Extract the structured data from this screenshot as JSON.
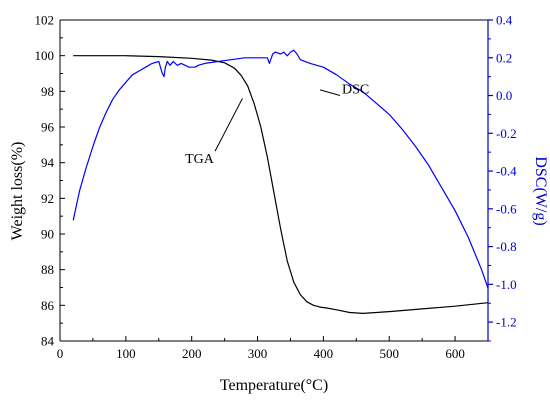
{
  "chart_data": {
    "type": "line",
    "title": "",
    "xlabel": "Temperature(°C)",
    "ylabel_left": "Weight loss(%)",
    "ylabel_right": "DSC(W/g)",
    "xlim": [
      0,
      650
    ],
    "ylim_left": [
      84,
      102
    ],
    "ylim_right": [
      -1.3,
      0.4
    ],
    "x_ticks": [
      0,
      100,
      200,
      300,
      400,
      500,
      600
    ],
    "y_ticks_left": [
      84,
      86,
      88,
      90,
      92,
      94,
      96,
      98,
      100,
      102
    ],
    "y_ticks_right": [
      -1.2,
      -1.0,
      -0.8,
      -0.6,
      -0.4,
      -0.2,
      0.0,
      0.2,
      0.4
    ],
    "y_tick_labels_right": [
      "-1.2",
      "-1.0",
      "-0.8",
      "-0.6",
      "-0.4",
      "-0.2",
      "0.0",
      "0.2",
      "0.4"
    ],
    "grid": false,
    "colors": {
      "left_axis": "#000000",
      "right_axis": "#0000cc",
      "TGA": "#000000",
      "DSC": "#0000ff"
    },
    "series": [
      {
        "name": "TGA",
        "axis": "left",
        "x": [
          20,
          50,
          100,
          150,
          200,
          230,
          250,
          265,
          275,
          285,
          295,
          305,
          315,
          325,
          335,
          345,
          355,
          365,
          375,
          385,
          395,
          405,
          420,
          440,
          460,
          500,
          550,
          600,
          650
        ],
        "y": [
          100.0,
          100.0,
          100.0,
          99.95,
          99.85,
          99.75,
          99.6,
          99.3,
          98.9,
          98.3,
          97.3,
          96.0,
          94.3,
          92.3,
          90.3,
          88.5,
          87.3,
          86.6,
          86.2,
          86.0,
          85.9,
          85.85,
          85.75,
          85.6,
          85.55,
          85.65,
          85.8,
          85.95,
          86.15
        ]
      },
      {
        "name": "DSC",
        "axis": "right",
        "x": [
          20,
          25,
          30,
          40,
          50,
          60,
          70,
          80,
          90,
          100,
          110,
          120,
          130,
          140,
          150,
          155,
          158,
          160,
          163,
          167,
          172,
          178,
          184,
          190,
          196,
          200,
          205,
          210,
          220,
          240,
          260,
          280,
          300,
          315,
          318,
          320,
          323,
          327,
          335,
          340,
          345,
          350,
          355,
          360,
          365,
          380,
          400,
          420,
          440,
          460,
          480,
          500,
          520,
          540,
          560,
          580,
          600,
          620,
          640,
          650
        ],
        "y": [
          -0.66,
          -0.58,
          -0.5,
          -0.38,
          -0.27,
          -0.17,
          -0.09,
          -0.02,
          0.03,
          0.07,
          0.11,
          0.13,
          0.15,
          0.17,
          0.18,
          0.12,
          0.1,
          0.15,
          0.18,
          0.16,
          0.18,
          0.16,
          0.17,
          0.16,
          0.15,
          0.15,
          0.15,
          0.16,
          0.17,
          0.18,
          0.19,
          0.2,
          0.2,
          0.2,
          0.17,
          0.19,
          0.22,
          0.23,
          0.22,
          0.23,
          0.21,
          0.23,
          0.24,
          0.22,
          0.19,
          0.17,
          0.15,
          0.11,
          0.06,
          0.02,
          -0.04,
          -0.1,
          -0.18,
          -0.27,
          -0.37,
          -0.49,
          -0.61,
          -0.75,
          -0.92,
          -1.02
        ]
      }
    ],
    "annotations": [
      {
        "text": "DSC",
        "x": 410,
        "y_right": 0.0
      },
      {
        "text": "TGA",
        "x": 190,
        "y_left": 94.2
      }
    ]
  }
}
